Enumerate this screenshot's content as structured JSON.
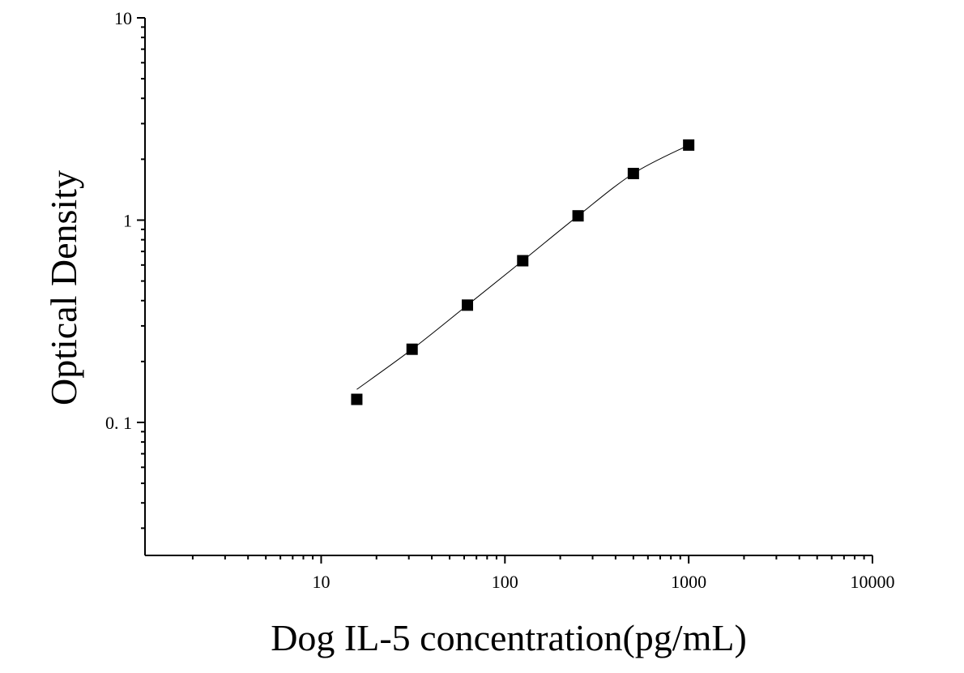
{
  "chart_data": {
    "type": "scatter",
    "title": "",
    "xlabel": "Dog IL-5 concentration(pg/mL)",
    "ylabel": "Optical Density",
    "x_scale": "log",
    "y_scale": "log",
    "xlim": [
      1.1,
      10000
    ],
    "ylim": [
      0.022,
      10
    ],
    "x_tick_labels": [
      "10",
      "100",
      "1000",
      "10000"
    ],
    "x_tick_values": [
      10,
      100,
      1000,
      10000
    ],
    "y_tick_labels": [
      "0. 1",
      "1",
      "10"
    ],
    "y_tick_values": [
      0.1,
      1,
      10
    ],
    "grid": false,
    "legend": "none",
    "marker": "square",
    "marker_color": "#000000",
    "line_color": "#000000",
    "series": [
      {
        "x": [
          15.625,
          31.25,
          62.5,
          125,
          250,
          500,
          1000
        ],
        "y": [
          0.13,
          0.23,
          0.38,
          0.63,
          1.05,
          1.7,
          2.35
        ]
      }
    ]
  }
}
